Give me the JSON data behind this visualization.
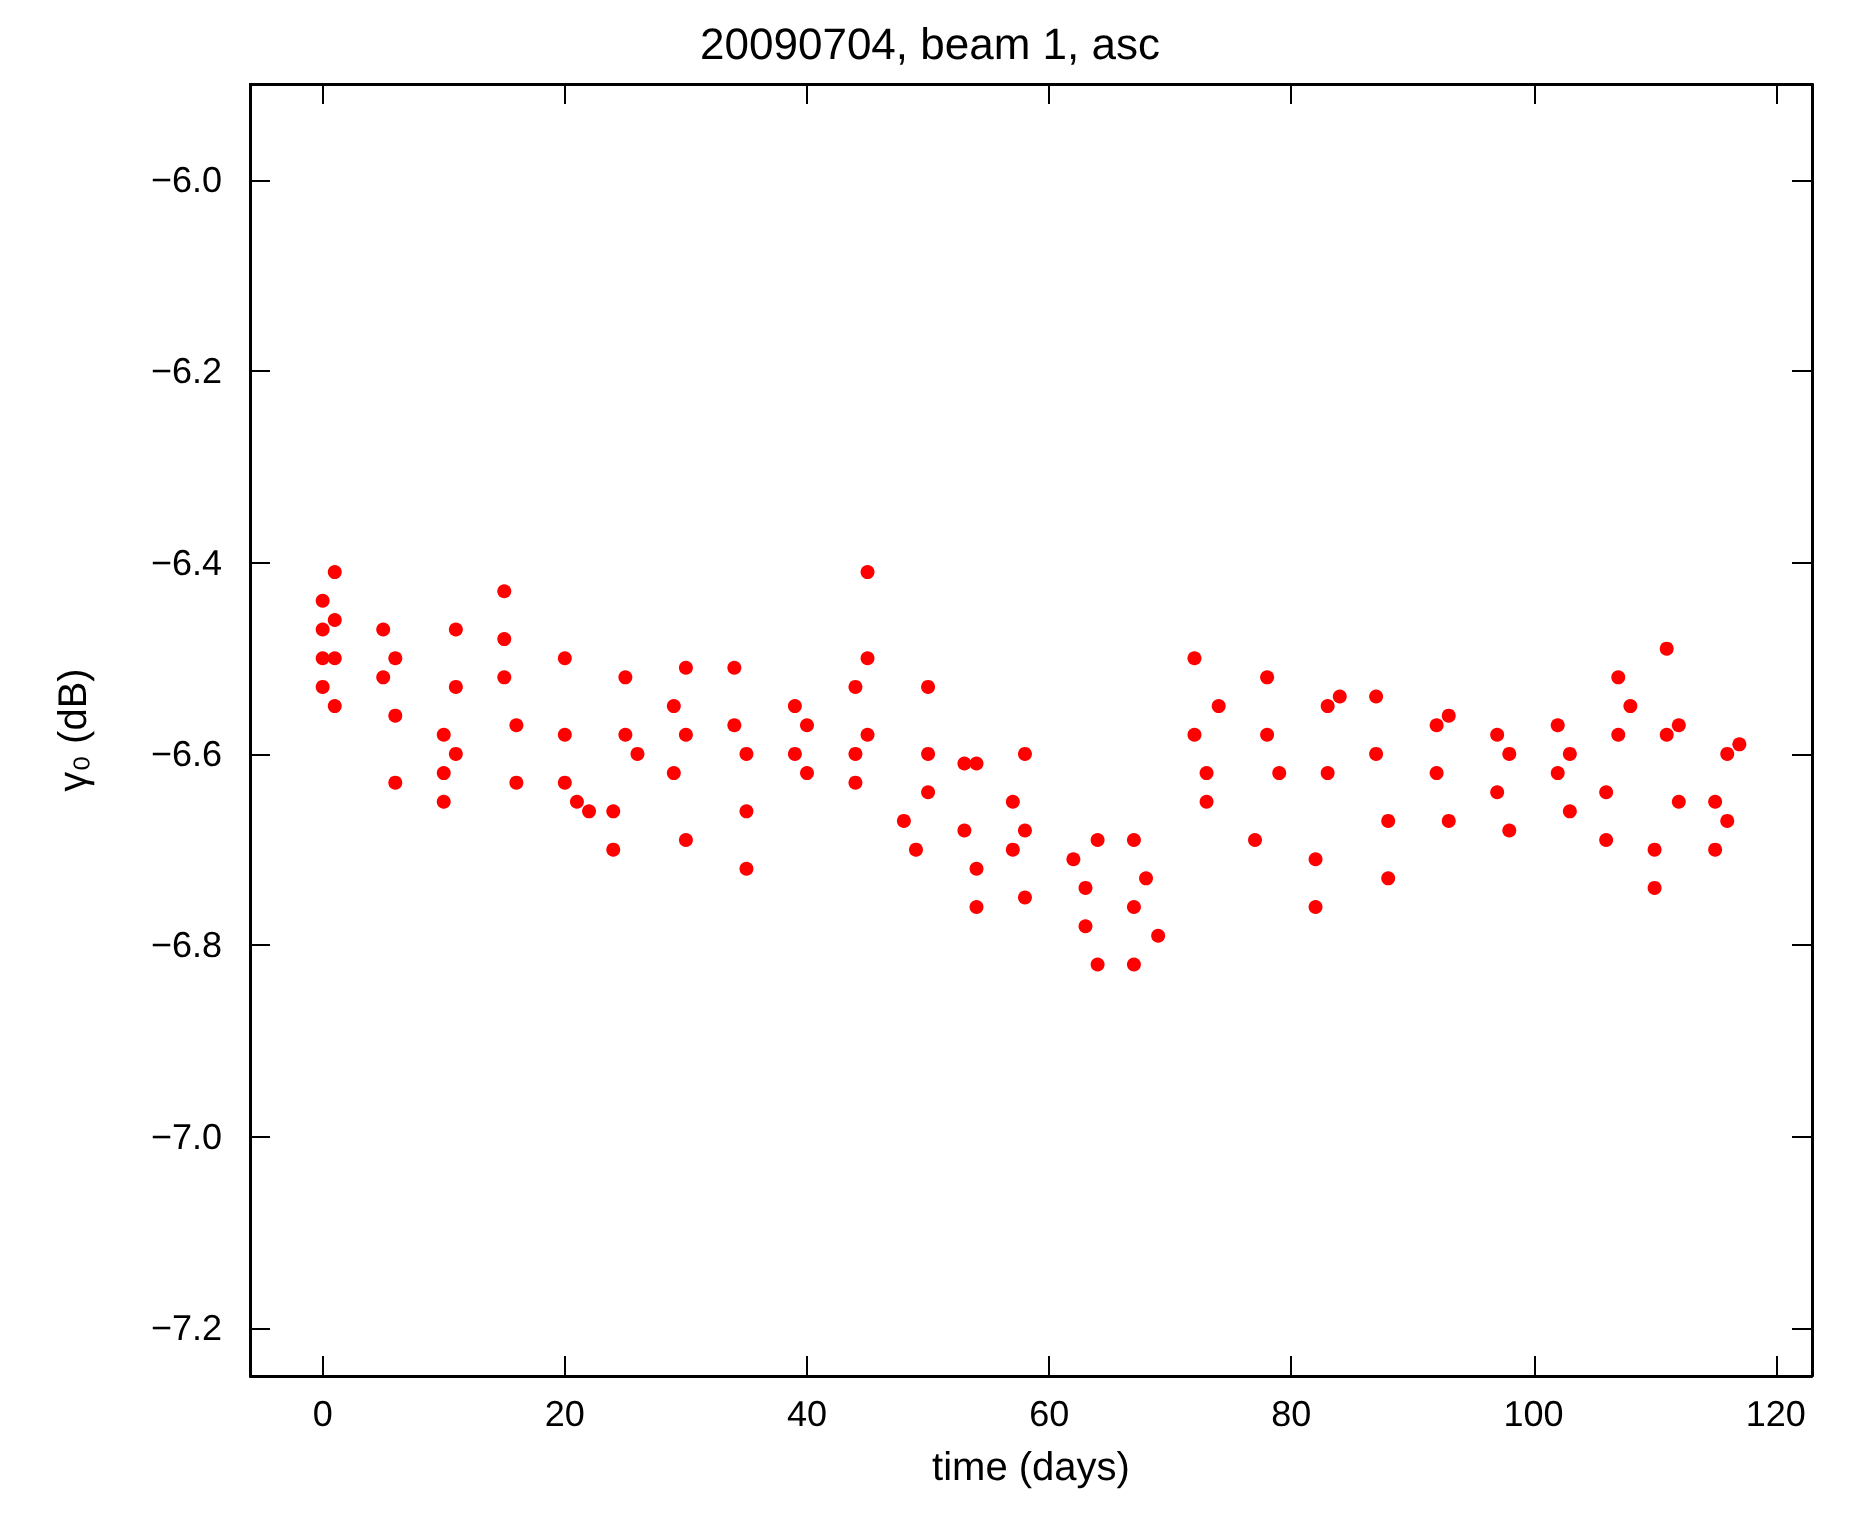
{
  "chart_data": {
    "type": "scatter",
    "title": "20090704, beam 1, asc",
    "xlabel": "time (days)",
    "ylabel": "γ₀ (dB)",
    "xlim": [
      -6,
      123
    ],
    "xticks": [
      0,
      20,
      40,
      60,
      80,
      100,
      120
    ],
    "ylim": [
      -7.25,
      -5.9
    ],
    "yticks": [
      {
        "value": -6.0,
        "label": "−6.0"
      },
      {
        "value": -6.2,
        "label": "−6.2"
      },
      {
        "value": -6.4,
        "label": "−6.4"
      },
      {
        "value": -6.6,
        "label": "−6.6"
      },
      {
        "value": -6.8,
        "label": "−6.8"
      },
      {
        "value": -7.0,
        "label": "−7.0"
      },
      {
        "value": -7.2,
        "label": "−7.2"
      }
    ],
    "grid": false,
    "marker": "circle",
    "series": [
      {
        "color": "#ff0000",
        "x": [
          0,
          0,
          0,
          0,
          1,
          1,
          1,
          1,
          5,
          5,
          6,
          6,
          6,
          10,
          10,
          10,
          11,
          11,
          11,
          15,
          15,
          15,
          16,
          16,
          20,
          20,
          20,
          21,
          22,
          24,
          24,
          25,
          25,
          26,
          29,
          29,
          30,
          30,
          30,
          34,
          34,
          35,
          35,
          35,
          39,
          39,
          40,
          40,
          44,
          44,
          44,
          45,
          45,
          45,
          48,
          49,
          50,
          50,
          50,
          53,
          53,
          54,
          54,
          54,
          57,
          57,
          58,
          58,
          58,
          62,
          63,
          63,
          64,
          64,
          67,
          67,
          67,
          68,
          69,
          72,
          72,
          73,
          73,
          74,
          77,
          78,
          78,
          79,
          82,
          82,
          83,
          83,
          84,
          87,
          87,
          88,
          88,
          92,
          92,
          93,
          93,
          97,
          97,
          98,
          98,
          102,
          102,
          103,
          103,
          106,
          106,
          107,
          107,
          108,
          110,
          110,
          111,
          111,
          112,
          112,
          115,
          115,
          116,
          116,
          117
        ],
        "values": [
          -6.44,
          -6.47,
          -6.5,
          -6.53,
          -6.41,
          -6.46,
          -6.5,
          -6.55,
          -6.47,
          -6.52,
          -6.5,
          -6.56,
          -6.63,
          -6.58,
          -6.62,
          -6.65,
          -6.47,
          -6.53,
          -6.6,
          -6.43,
          -6.48,
          -6.52,
          -6.57,
          -6.63,
          -6.5,
          -6.58,
          -6.63,
          -6.65,
          -6.66,
          -6.66,
          -6.7,
          -6.52,
          -6.58,
          -6.6,
          -6.55,
          -6.62,
          -6.51,
          -6.58,
          -6.69,
          -6.51,
          -6.57,
          -6.6,
          -6.66,
          -6.72,
          -6.55,
          -6.6,
          -6.57,
          -6.62,
          -6.53,
          -6.6,
          -6.63,
          -6.41,
          -6.5,
          -6.58,
          -6.67,
          -6.7,
          -6.53,
          -6.6,
          -6.64,
          -6.61,
          -6.68,
          -6.61,
          -6.72,
          -6.76,
          -6.65,
          -6.7,
          -6.6,
          -6.68,
          -6.75,
          -6.71,
          -6.74,
          -6.78,
          -6.69,
          -6.82,
          -6.69,
          -6.76,
          -6.82,
          -6.73,
          -6.79,
          -6.5,
          -6.58,
          -6.62,
          -6.65,
          -6.55,
          -6.69,
          -6.52,
          -6.58,
          -6.62,
          -6.71,
          -6.76,
          -6.55,
          -6.62,
          -6.54,
          -6.54,
          -6.6,
          -6.67,
          -6.73,
          -6.57,
          -6.62,
          -6.56,
          -6.67,
          -6.58,
          -6.64,
          -6.6,
          -6.68,
          -6.57,
          -6.62,
          -6.6,
          -6.66,
          -6.64,
          -6.69,
          -6.52,
          -6.58,
          -6.55,
          -6.7,
          -6.74,
          -6.49,
          -6.58,
          -6.57,
          -6.65,
          -6.65,
          -6.7,
          -6.6,
          -6.67,
          -6.59
        ]
      }
    ]
  }
}
